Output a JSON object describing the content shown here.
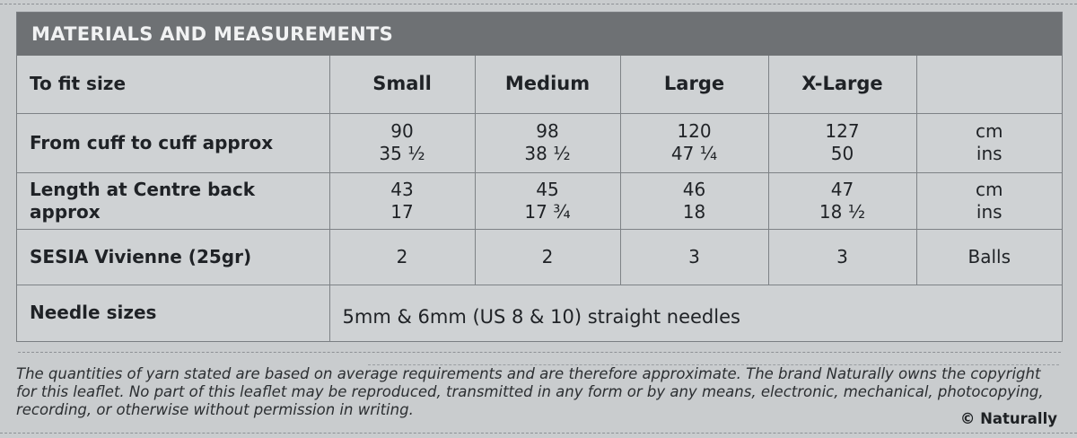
{
  "section_title": "MATERIALS AND MEASUREMENTS",
  "header_row": {
    "label": "To fit size",
    "sizes": [
      "Small",
      "Medium",
      "Large",
      "X-Large"
    ]
  },
  "rows": [
    {
      "label": "From cuff to cuff approx",
      "values": [
        [
          "90",
          "35 ½"
        ],
        [
          "98",
          "38 ½"
        ],
        [
          "120",
          "47 ¼"
        ],
        [
          "127",
          "50"
        ]
      ],
      "units": [
        "cm",
        "ins"
      ]
    },
    {
      "label_lines": [
        "Length at Centre back",
        "approx"
      ],
      "values": [
        [
          "43",
          "17"
        ],
        [
          "45",
          "17 ¾"
        ],
        [
          "46",
          "18"
        ],
        [
          "47",
          "18 ½"
        ]
      ],
      "units": [
        "cm",
        "ins"
      ]
    },
    {
      "label": "SESIA Vivienne (25gr)",
      "values": [
        "2",
        "2",
        "3",
        "3"
      ],
      "unit": "Balls"
    }
  ],
  "needles": {
    "label": "Needle sizes",
    "value": "5mm & 6mm (US 8 & 10) straight needles"
  },
  "footer": {
    "lines": [
      "The quantities of yarn stated are based on average requirements and are therefore approximate. The brand Naturally owns the copyright",
      "for this leaflet. No part of this leaflet may be reproduced, transmitted in any form or by any means, electronic, mechanical, photocopying,",
      "recording, or otherwise without permission in writing."
    ],
    "copyright": "© Naturally"
  }
}
